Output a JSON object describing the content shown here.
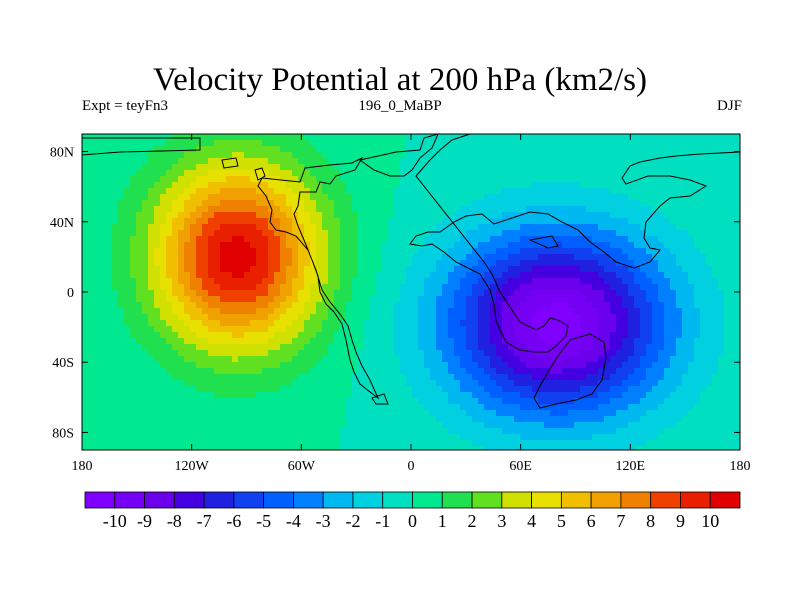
{
  "title": "Velocity Potential at 200 hPa (km2/s)",
  "left_subtitle": "Expt = teyFn3",
  "center_subtitle": "196_0_MaBP",
  "right_subtitle": "DJF",
  "chart_data": {
    "type": "heatmap",
    "projection": "cylindrical-equidistant",
    "title": "Velocity Potential at 200 hPa (km2/s)",
    "xlim": [
      -180,
      180
    ],
    "ylim": [
      -90,
      90
    ],
    "x_ticks": [
      {
        "value": -180,
        "label": "180"
      },
      {
        "value": -120,
        "label": "120W"
      },
      {
        "value": -60,
        "label": "60W"
      },
      {
        "value": 0,
        "label": "0"
      },
      {
        "value": 60,
        "label": "60E"
      },
      {
        "value": 120,
        "label": "120E"
      },
      {
        "value": 180,
        "label": "180"
      }
    ],
    "y_ticks": [
      {
        "value": 80,
        "label": "80N"
      },
      {
        "value": 40,
        "label": "40N"
      },
      {
        "value": 0,
        "label": "0"
      },
      {
        "value": -40,
        "label": "40S"
      },
      {
        "value": -80,
        "label": "80S"
      }
    ],
    "field_centers": [
      {
        "name": "maximum",
        "lon": -95,
        "lat": 20,
        "value": 10.5,
        "extent_lon": 45,
        "extent_lat": 52
      },
      {
        "name": "minimum",
        "lon": 80,
        "lat": -18,
        "value": -10.5,
        "extent_lon": 60,
        "extent_lat": 52
      }
    ],
    "colorbar": {
      "levels": [
        -10,
        -9,
        -8,
        -7,
        -6,
        -5,
        -4,
        -3,
        -2,
        -1,
        0,
        1,
        2,
        3,
        4,
        5,
        6,
        7,
        8,
        9,
        10
      ],
      "level_labels": [
        "-10",
        "-9",
        "-8",
        "-7",
        "-6",
        "-5",
        "-4",
        "-3",
        "-2",
        "-1",
        "0",
        "1",
        "2",
        "3",
        "4",
        "5",
        "6",
        "7",
        "8",
        "9",
        "10"
      ],
      "colors": [
        "#8000ff",
        "#7600f4",
        "#6a00ec",
        "#5800e6",
        "#4400e0",
        "#2020e0",
        "#1040f0",
        "#0060ff",
        "#0080ff",
        "#00a0ff",
        "#00b8f0",
        "#00d0e0",
        "#00e0c0",
        "#00e890",
        "#20e050",
        "#60e020",
        "#a0e000",
        "#d0e000",
        "#e8e000",
        "#f0c000",
        "#f0a000",
        "#f08000",
        "#f06000",
        "#f04000",
        "#e82000",
        "#e00000"
      ]
    }
  }
}
